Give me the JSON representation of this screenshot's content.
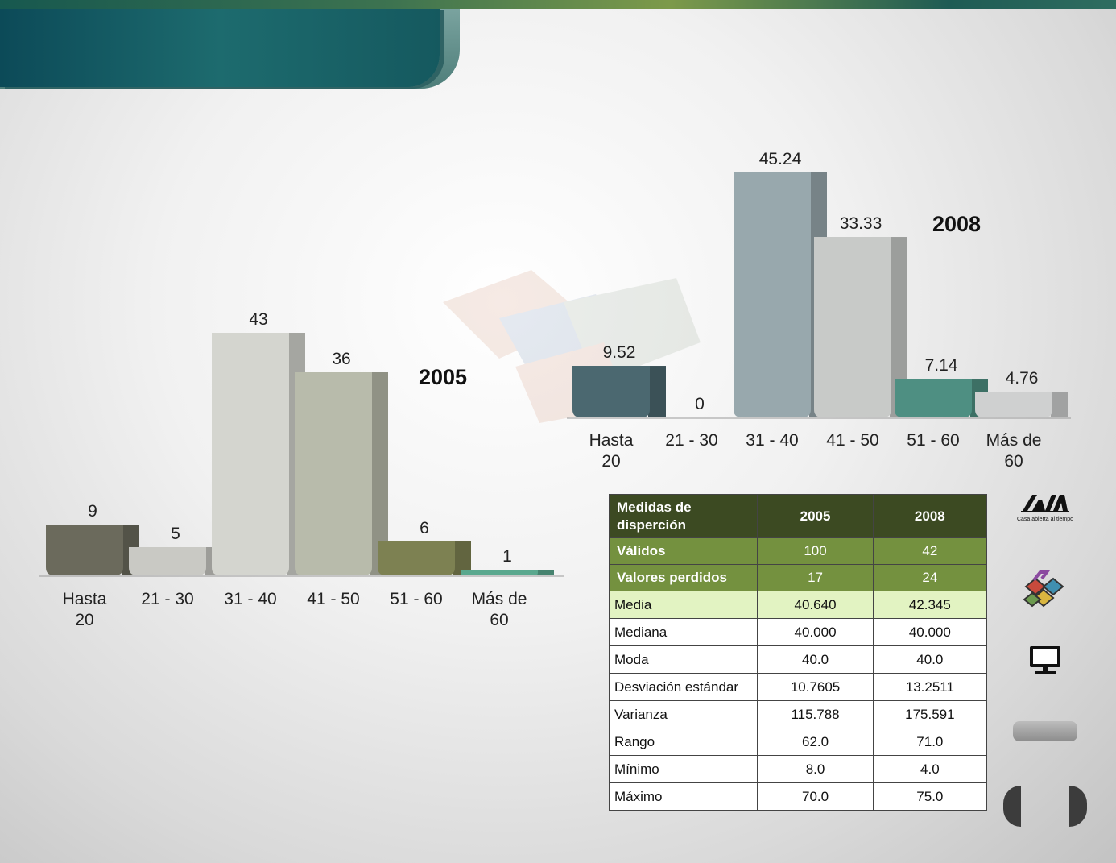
{
  "charts_title": "",
  "chart_data": [
    {
      "type": "bar",
      "title": "2005",
      "categories": [
        "Hasta 20",
        "21 - 30",
        "31 - 40",
        "41 - 50",
        "51 - 60",
        "Más de 60"
      ],
      "category_lines": [
        [
          "Hasta",
          "20"
        ],
        [
          "21 - 30"
        ],
        [
          "31 - 40"
        ],
        [
          "41 - 50"
        ],
        [
          "51 - 60"
        ],
        [
          "Más de",
          "60"
        ]
      ],
      "values": [
        9,
        5,
        43,
        36,
        6,
        1
      ],
      "value_labels": [
        "9",
        "5",
        "43",
        "36",
        "6",
        "1"
      ],
      "colors": [
        "#6b6a5c",
        "#c9c9c4",
        "#d4d5cf",
        "#b8bbab",
        "#7d8152",
        "#5aa88e"
      ],
      "ylim": [
        0,
        43
      ],
      "xlabel": "",
      "ylabel": "",
      "grid": false,
      "legend": "none"
    },
    {
      "type": "bar",
      "title": "2008",
      "categories": [
        "Hasta 20",
        "21 - 30",
        "31 - 40",
        "41 - 50",
        "51 - 60",
        "Más de 60"
      ],
      "category_lines": [
        [
          "Hasta",
          "20"
        ],
        [
          "21 - 30"
        ],
        [
          "31 - 40"
        ],
        [
          "41 - 50"
        ],
        [
          "51 - 60"
        ],
        [
          "Más de",
          "60"
        ]
      ],
      "values": [
        9.52,
        0,
        45.24,
        33.33,
        7.14,
        4.76
      ],
      "value_labels": [
        "9.52",
        "0",
        "45.24",
        "33.33",
        "7.14",
        "4.76"
      ],
      "colors": [
        "#4b6870",
        "#cfcfcf",
        "#98a8ad",
        "#c8cac8",
        "#4e8f82",
        "#cfd0d0"
      ],
      "ylim": [
        0,
        45.24
      ],
      "xlabel": "",
      "ylabel": "",
      "grid": false,
      "legend": "none"
    }
  ],
  "table": {
    "header": [
      "Medidas de\ndisperción",
      "2005",
      "2008"
    ],
    "header_first_lines": [
      "Medidas de",
      "disperción"
    ],
    "rows": [
      {
        "label": "Válidos",
        "v2005": "100",
        "v2008": "42",
        "style": "green"
      },
      {
        "label": "Valores perdidos",
        "v2005": "17",
        "v2008": "24",
        "style": "green"
      },
      {
        "label": "Media",
        "v2005": "40.640",
        "v2008": "42.345",
        "style": "light"
      },
      {
        "label": "Mediana",
        "v2005": "40.000",
        "v2008": "40.000",
        "style": "plain"
      },
      {
        "label": "Moda",
        "v2005": "40.0",
        "v2008": "40.0",
        "style": "plain"
      },
      {
        "label": "Desviación estándar",
        "v2005": "10.7605",
        "v2008": "13.2511",
        "style": "plain"
      },
      {
        "label": "Varianza",
        "v2005": "115.788",
        "v2008": "175.591",
        "style": "plain"
      },
      {
        "label": "Rango",
        "v2005": "62.0",
        "v2008": "71.0",
        "style": "plain"
      },
      {
        "label": "Mínimo",
        "v2005": "8.0",
        "v2008": "4.0",
        "style": "plain"
      },
      {
        "label": "Máximo",
        "v2005": "70.0",
        "v2008": "75.0",
        "style": "plain"
      }
    ]
  },
  "sidebar": {
    "logo_caption": "Casa abierta al tiempo",
    "icons": [
      "uam-logo-icon",
      "blocks-icon",
      "monitor-icon"
    ]
  }
}
